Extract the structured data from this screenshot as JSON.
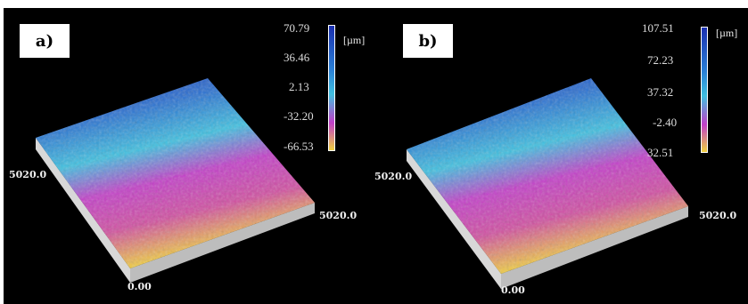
{
  "panels": [
    {
      "label": "a)",
      "unit": "[µm]",
      "ticks": [
        "70.79",
        "36.46",
        "2.13",
        "-32.20",
        "-66.53"
      ],
      "axis_left": "5020.0",
      "axis_right": "5020.0",
      "axis_origin": "0.00"
    },
    {
      "label": "b)",
      "unit": "[µm]",
      "ticks": [
        "107.51",
        "72.23",
        "37.32",
        "-2.40",
        "32.51"
      ],
      "axis_left": "5020.0",
      "axis_right": "5020.0",
      "axis_origin": "0.00"
    }
  ],
  "colors": {
    "background": "#000000",
    "high": "#1a2fb0",
    "upper": "#2a7fd6",
    "mid": "#3fc0e0",
    "lower": "#c23fc8",
    "low": "#f0d040",
    "base": "#d8d8d8"
  }
}
